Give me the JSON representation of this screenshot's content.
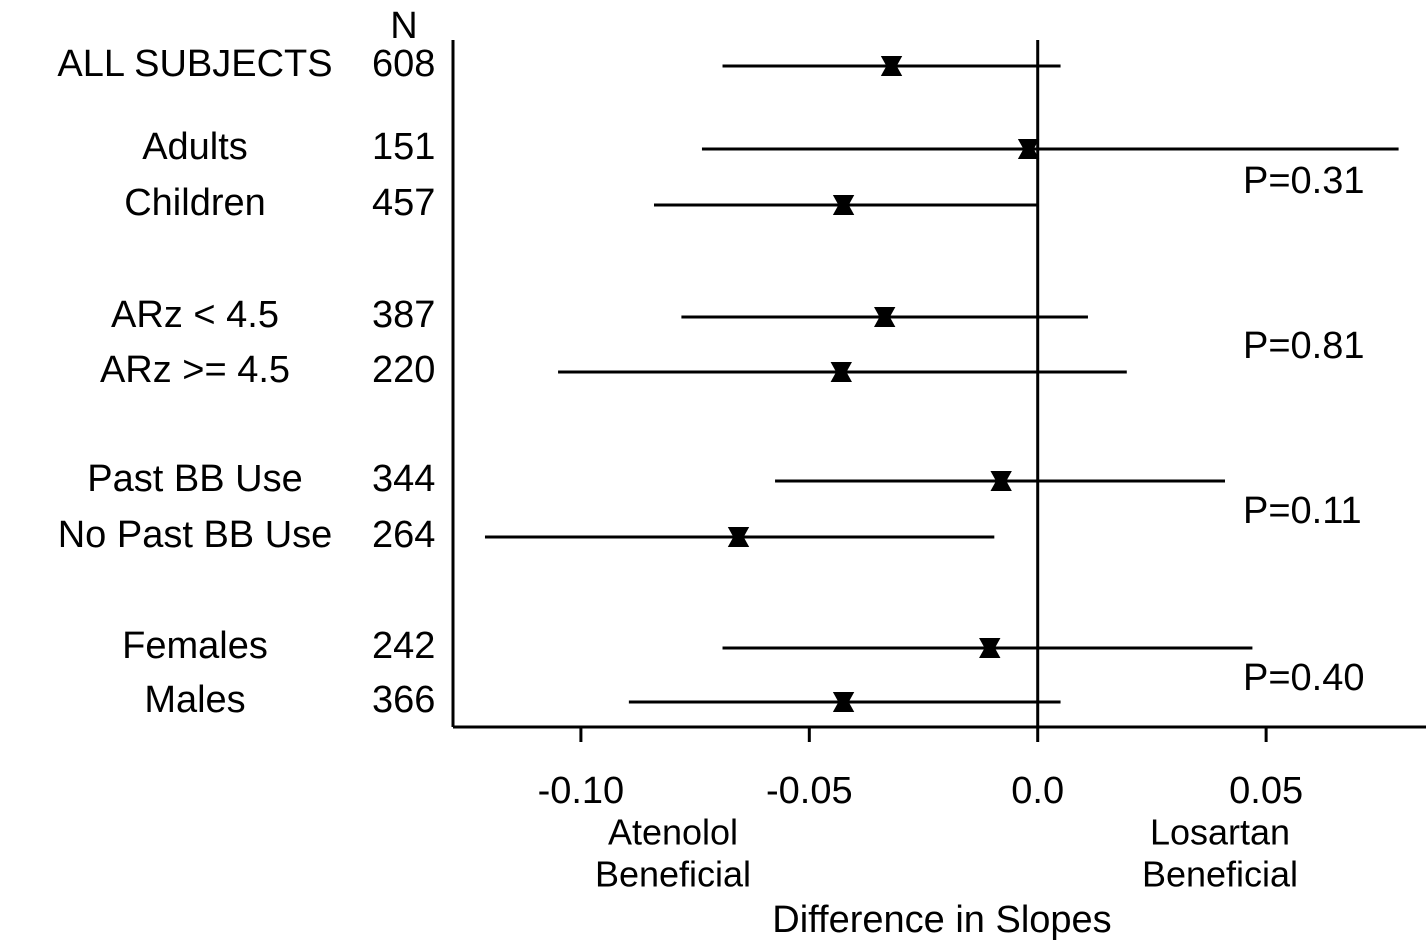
{
  "chart_data": {
    "type": "forest",
    "n_header": "N",
    "categories": [
      "ALL SUBJECTS",
      "Adults",
      "Children",
      "ARz < 4.5",
      "ARz >= 4.5",
      "Past BB Use",
      "No Past BB Use",
      "Females",
      "Males"
    ],
    "n": [
      608,
      151,
      457,
      387,
      220,
      344,
      264,
      242,
      366
    ],
    "values": [
      -0.032,
      -0.002,
      -0.0425,
      -0.0335,
      -0.043,
      -0.008,
      -0.0655,
      -0.0105,
      -0.0425
    ],
    "lower": [
      -0.069,
      -0.0735,
      -0.084,
      -0.078,
      -0.105,
      -0.0575,
      -0.121,
      -0.069,
      -0.0895
    ],
    "upper": [
      0.005,
      0.079,
      0.0,
      0.011,
      0.0195,
      0.041,
      -0.0095,
      0.047,
      0.005
    ],
    "color": "#000000",
    "annotations": [
      "P=0.31",
      "P=0.81",
      "P=0.11",
      "P=0.40"
    ],
    "xlim": [
      -0.128,
      0.085
    ],
    "xticks": [
      {
        "value": -0.1,
        "label": "-0.10"
      },
      -0.05,
      {
        "value": 0,
        "label": "0.0"
      },
      0.05
    ],
    "left_note": [
      "Atenolol",
      "Beneficial"
    ],
    "right_note": [
      "Losartan",
      "Beneficial"
    ],
    "xlabel": "Difference in Slopes"
  }
}
